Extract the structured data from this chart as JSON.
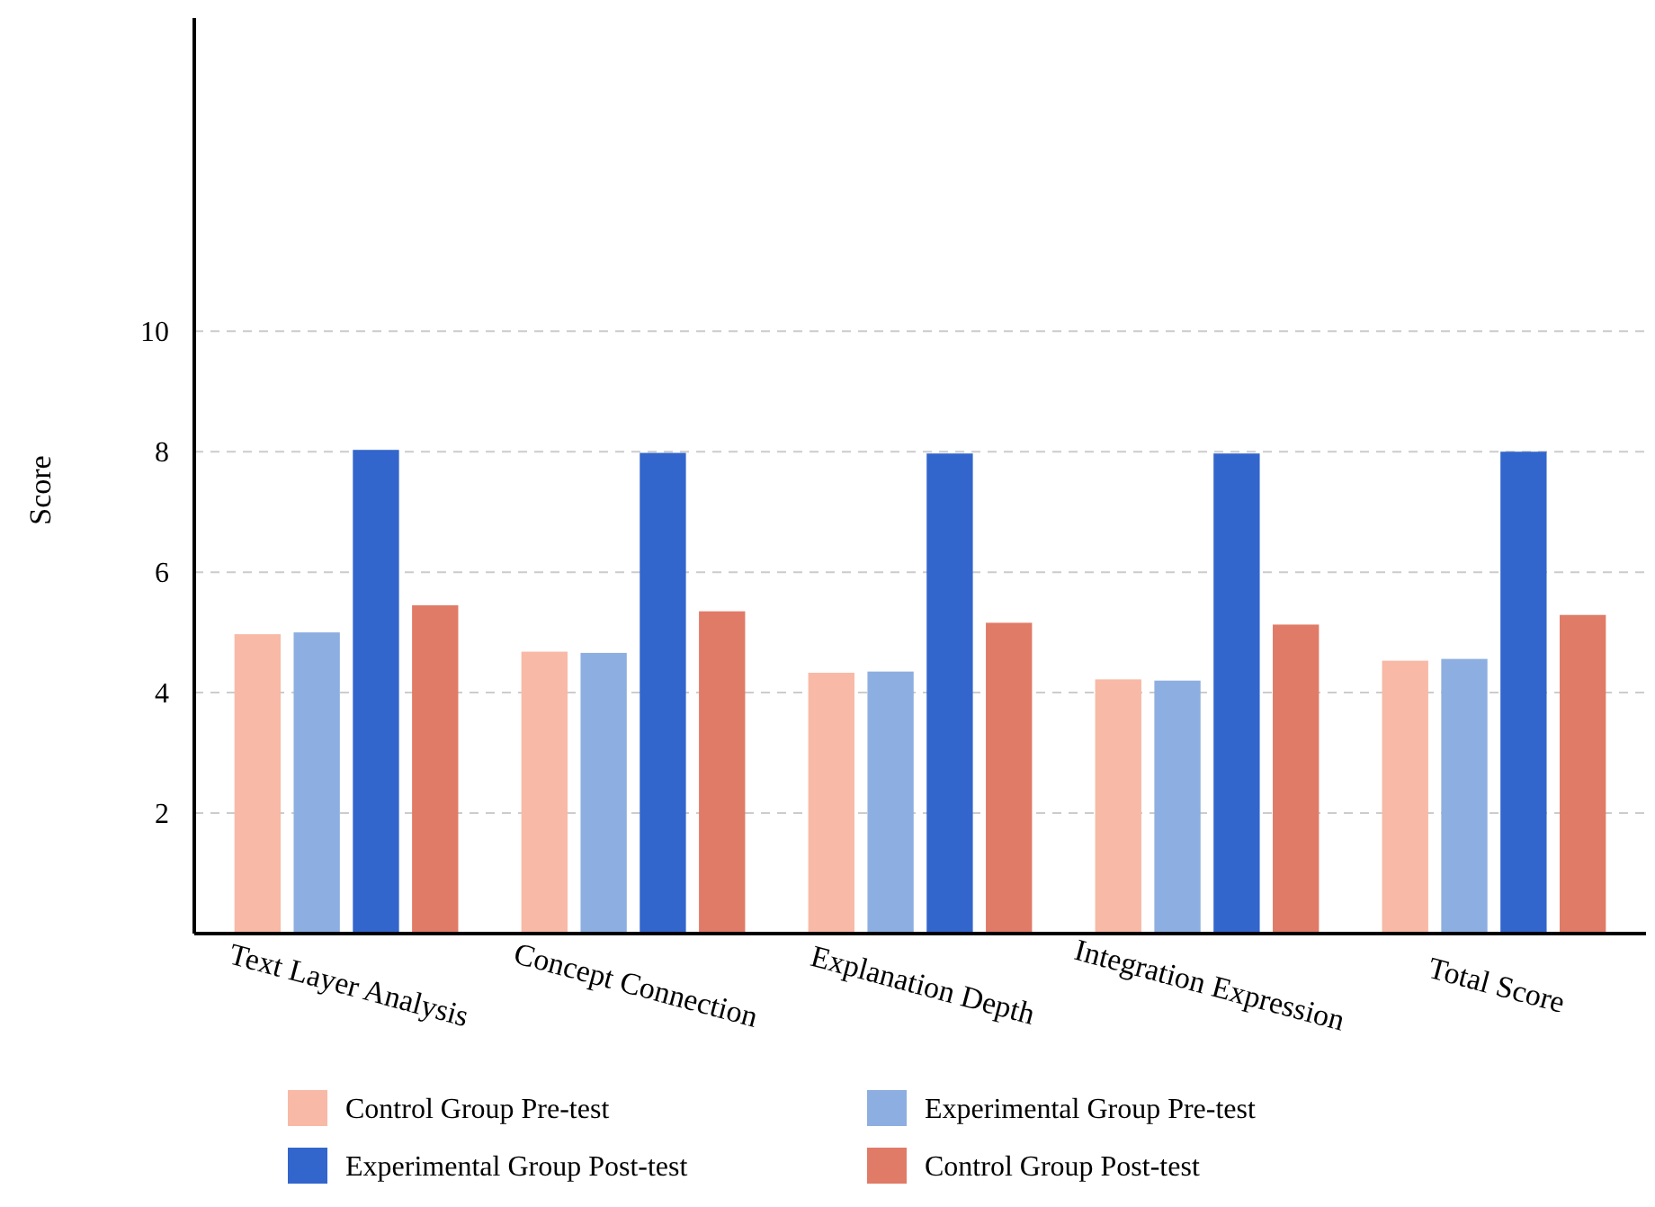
{
  "chart_data": {
    "type": "bar",
    "ylabel": "Score",
    "categories": [
      "Text Layer Analysis",
      "Concept Connection",
      "Explanation Depth",
      "Integration Expression",
      "Total Score"
    ],
    "series": [
      {
        "name": "Control Group Pre-test",
        "color": "#f8b9a6",
        "values": [
          4.97,
          4.68,
          4.33,
          4.22,
          4.53
        ]
      },
      {
        "name": "Experimental Group Pre-test",
        "color": "#8daee0",
        "values": [
          5.0,
          4.66,
          4.35,
          4.2,
          4.56
        ]
      },
      {
        "name": "Experimental Group Post-test",
        "color": "#3366cc",
        "values": [
          8.03,
          7.98,
          7.97,
          7.97,
          8.0
        ]
      },
      {
        "name": "Control Group Post-test",
        "color": "#e07b67",
        "values": [
          5.45,
          5.35,
          5.16,
          5.13,
          5.29
        ]
      }
    ],
    "ylim": [
      0,
      15.2
    ],
    "yticks": [
      2,
      4,
      6,
      8,
      10
    ],
    "grid": "y",
    "legend": "bottom"
  }
}
